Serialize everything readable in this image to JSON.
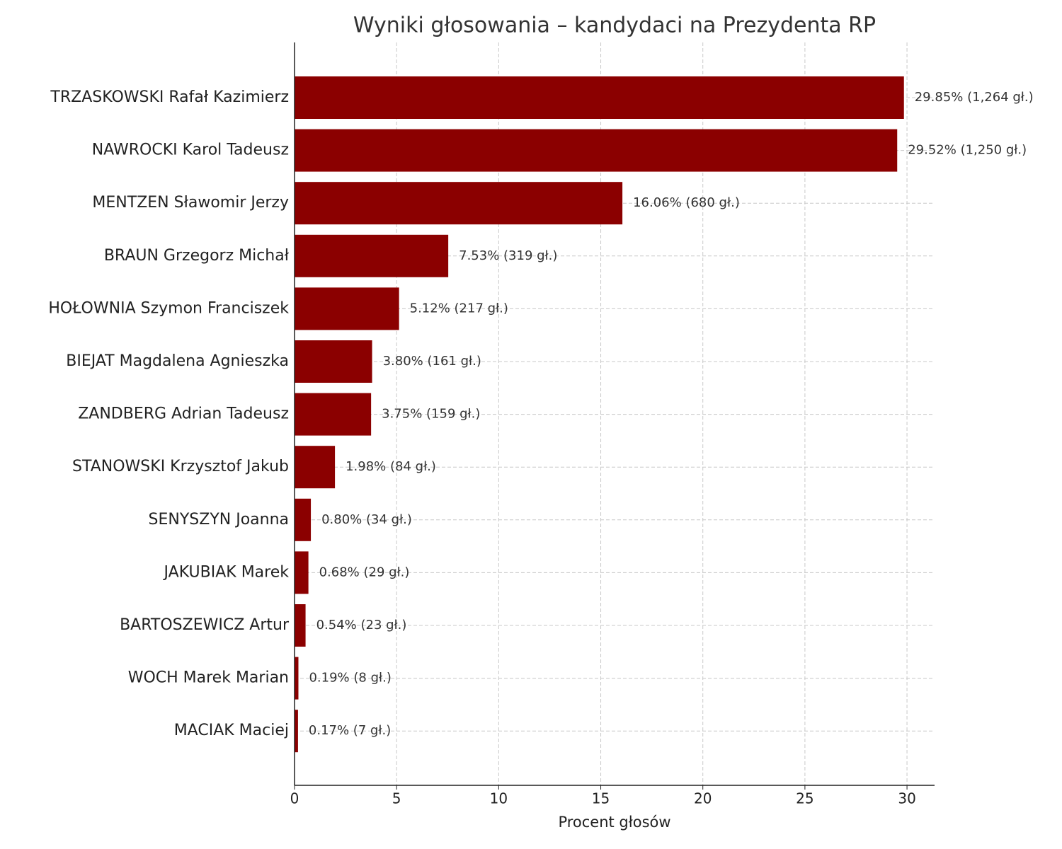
{
  "chart_data": {
    "type": "barh",
    "title": "Wyniki głosowania – kandydaci na Prezydenta RP",
    "xlabel": "Procent głosów",
    "categories": [
      "TRZASKOWSKI Rafał Kazimierz",
      "NAWROCKI Karol Tadeusz",
      "MENTZEN Sławomir Jerzy",
      "BRAUN Grzegorz Michał",
      "HOŁOWNIA Szymon Franciszek",
      "BIEJAT Magdalena Agnieszka",
      "ZANDBERG Adrian Tadeusz",
      "STANOWSKI Krzysztof Jakub",
      "SENYSZYN Joanna",
      "JAKUBIAK Marek",
      "BARTOSZEWICZ Artur",
      "WOCH Marek Marian",
      "MACIAK Maciej"
    ],
    "values": [
      29.85,
      29.52,
      16.06,
      7.53,
      5.12,
      3.8,
      3.75,
      1.98,
      0.8,
      0.68,
      0.54,
      0.19,
      0.17
    ],
    "value_labels": [
      "29.85% (1,264 gł.)",
      "29.52% (1,250 gł.)",
      "16.06% (680 gł.)",
      "7.53% (319 gł.)",
      "5.12% (217 gł.)",
      "3.80% (161 gł.)",
      "3.75% (159 gł.)",
      "1.98% (84 gł.)",
      "0.80% (34 gł.)",
      "0.68% (29 gł.)",
      "0.54% (23 gł.)",
      "0.19% (8 gł.)",
      "0.17% (7 gł.)"
    ],
    "color": "#8b0000",
    "xlim": [
      0,
      31.35
    ],
    "xticks": [
      0,
      5,
      10,
      15,
      20,
      25,
      30
    ],
    "grid": true
  }
}
